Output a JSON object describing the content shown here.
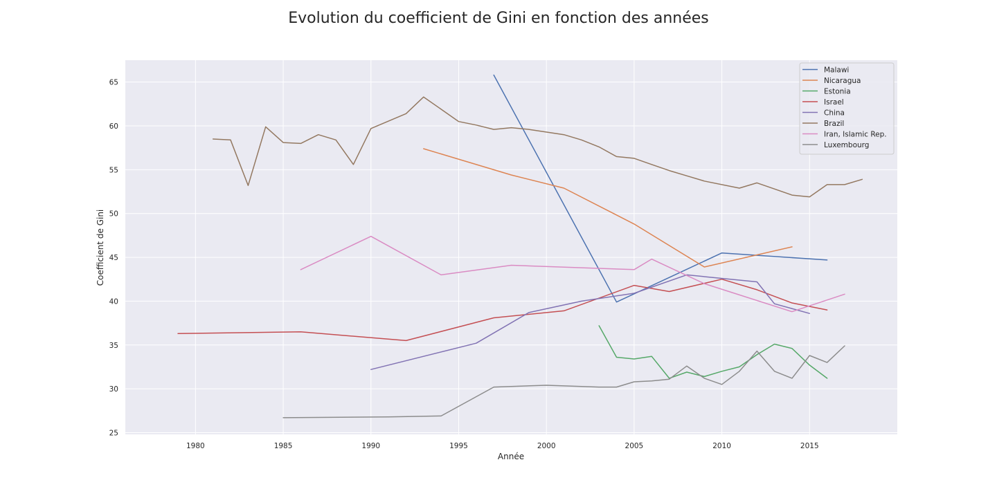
{
  "chart_data": {
    "type": "line",
    "title": "Evolution du coefficient de Gini en fonction des années",
    "xlabel": "Année",
    "ylabel": "Coefficient de Gini",
    "xlim": [
      1976,
      2020
    ],
    "ylim": [
      24.8,
      67.5
    ],
    "xticks": [
      1980,
      1985,
      1990,
      1995,
      2000,
      2005,
      2010,
      2015
    ],
    "yticks": [
      25,
      30,
      35,
      40,
      45,
      50,
      55,
      60,
      65
    ],
    "grid": true,
    "legend_position": "top-right",
    "background": "#eaeaf2",
    "series": [
      {
        "name": "Malawi",
        "color": "#4c72b0",
        "points": [
          [
            1997,
            65.8
          ],
          [
            2004,
            39.9
          ],
          [
            2010,
            45.5
          ],
          [
            2016,
            44.7
          ]
        ]
      },
      {
        "name": "Nicaragua",
        "color": "#dd8452",
        "points": [
          [
            1993,
            57.4
          ],
          [
            1998,
            54.4
          ],
          [
            2001,
            52.9
          ],
          [
            2005,
            48.8
          ],
          [
            2009,
            43.9
          ],
          [
            2014,
            46.2
          ]
        ]
      },
      {
        "name": "Estonia",
        "color": "#55a868",
        "points": [
          [
            2003,
            37.2
          ],
          [
            2004,
            33.6
          ],
          [
            2005,
            33.4
          ],
          [
            2006,
            33.7
          ],
          [
            2007,
            31.2
          ],
          [
            2008,
            31.9
          ],
          [
            2009,
            31.4
          ],
          [
            2010,
            32.0
          ],
          [
            2011,
            32.5
          ],
          [
            2012,
            33.9
          ],
          [
            2013,
            35.1
          ],
          [
            2014,
            34.6
          ],
          [
            2015,
            32.7
          ],
          [
            2016,
            31.2
          ]
        ]
      },
      {
        "name": "Israel",
        "color": "#c44e52",
        "points": [
          [
            1979,
            36.3
          ],
          [
            1986,
            36.5
          ],
          [
            1992,
            35.5
          ],
          [
            1997,
            38.1
          ],
          [
            2001,
            38.9
          ],
          [
            2005,
            41.8
          ],
          [
            2007,
            41.1
          ],
          [
            2010,
            42.5
          ],
          [
            2012,
            41.3
          ],
          [
            2014,
            39.8
          ],
          [
            2016,
            39.0
          ]
        ]
      },
      {
        "name": "China",
        "color": "#8172b3",
        "points": [
          [
            1990,
            32.2
          ],
          [
            1996,
            35.2
          ],
          [
            1999,
            38.7
          ],
          [
            2002,
            40.0
          ],
          [
            2005,
            40.9
          ],
          [
            2008,
            43.0
          ],
          [
            2010,
            42.6
          ],
          [
            2012,
            42.2
          ],
          [
            2013,
            39.7
          ],
          [
            2015,
            38.6
          ]
        ]
      },
      {
        "name": "Brazil",
        "color": "#937860",
        "points": [
          [
            1981,
            58.5
          ],
          [
            1982,
            58.4
          ],
          [
            1983,
            53.2
          ],
          [
            1984,
            59.9
          ],
          [
            1985,
            58.1
          ],
          [
            1986,
            58.0
          ],
          [
            1987,
            59.0
          ],
          [
            1988,
            58.4
          ],
          [
            1989,
            55.6
          ],
          [
            1990,
            59.7
          ],
          [
            1992,
            61.4
          ],
          [
            1993,
            63.3
          ],
          [
            1995,
            60.5
          ],
          [
            1996,
            60.1
          ],
          [
            1997,
            59.6
          ],
          [
            1998,
            59.8
          ],
          [
            1999,
            59.6
          ],
          [
            2001,
            59.0
          ],
          [
            2002,
            58.4
          ],
          [
            2003,
            57.6
          ],
          [
            2004,
            56.5
          ],
          [
            2005,
            56.3
          ],
          [
            2006,
            55.6
          ],
          [
            2007,
            54.9
          ],
          [
            2008,
            54.3
          ],
          [
            2009,
            53.7
          ],
          [
            2011,
            52.9
          ],
          [
            2012,
            53.5
          ],
          [
            2013,
            52.8
          ],
          [
            2014,
            52.1
          ],
          [
            2015,
            51.9
          ],
          [
            2016,
            53.3
          ],
          [
            2017,
            53.3
          ],
          [
            2018,
            53.9
          ]
        ]
      },
      {
        "name": "Iran, Islamic Rep.",
        "color": "#da8bc3",
        "points": [
          [
            1986,
            43.6
          ],
          [
            1990,
            47.4
          ],
          [
            1994,
            43.0
          ],
          [
            1998,
            44.1
          ],
          [
            2005,
            43.6
          ],
          [
            2006,
            44.8
          ],
          [
            2009,
            42.0
          ],
          [
            2014,
            38.8
          ],
          [
            2017,
            40.8
          ]
        ]
      },
      {
        "name": "Luxembourg",
        "color": "#8c8c8c",
        "points": [
          [
            1985,
            26.7
          ],
          [
            1991,
            26.8
          ],
          [
            1994,
            26.9
          ],
          [
            1997,
            30.2
          ],
          [
            2000,
            30.4
          ],
          [
            2003,
            30.2
          ],
          [
            2004,
            30.2
          ],
          [
            2005,
            30.8
          ],
          [
            2006,
            30.9
          ],
          [
            2007,
            31.1
          ],
          [
            2008,
            32.6
          ],
          [
            2009,
            31.2
          ],
          [
            2010,
            30.5
          ],
          [
            2011,
            32.0
          ],
          [
            2012,
            34.3
          ],
          [
            2013,
            32.0
          ],
          [
            2014,
            31.2
          ],
          [
            2015,
            33.8
          ],
          [
            2016,
            33.0
          ],
          [
            2017,
            34.9
          ]
        ]
      }
    ]
  }
}
